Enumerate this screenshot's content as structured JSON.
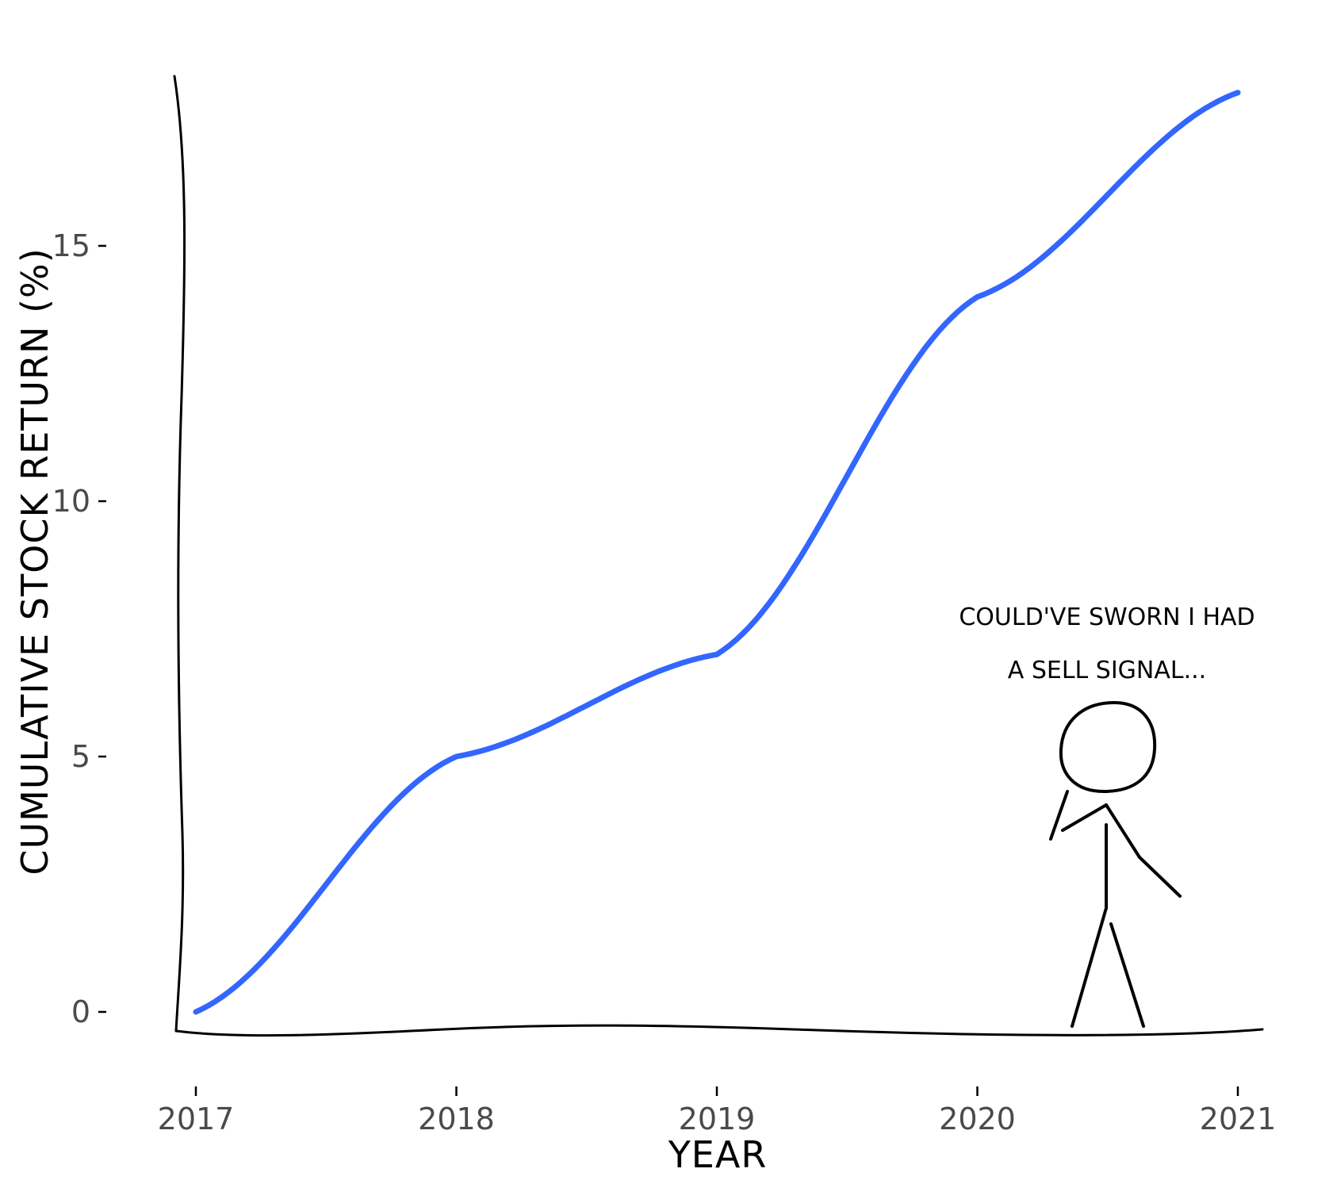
{
  "chart_data": {
    "type": "line",
    "title": "",
    "xlabel": "YEAR",
    "ylabel": "CUMULATIVE STOCK RETURN (%)",
    "x": [
      2017,
      2018,
      2019,
      2020,
      2021
    ],
    "x_tick_labels": [
      "2017",
      "2018",
      "2019",
      "2020",
      "2021"
    ],
    "y_ticks": [
      0,
      5,
      10,
      15
    ],
    "y_tick_labels": [
      "0",
      "5",
      "10",
      "15"
    ],
    "xlim": [
      2016.92,
      2021.08
    ],
    "ylim": [
      -0.5,
      18.3
    ],
    "grid": false,
    "series": [
      {
        "values": [
          0,
          5,
          7,
          14,
          18
        ],
        "color": "#3366ff"
      }
    ],
    "annotation": {
      "lines": [
        "COULD'VE SWORN I HAD",
        "A SELL SIGNAL..."
      ]
    }
  }
}
